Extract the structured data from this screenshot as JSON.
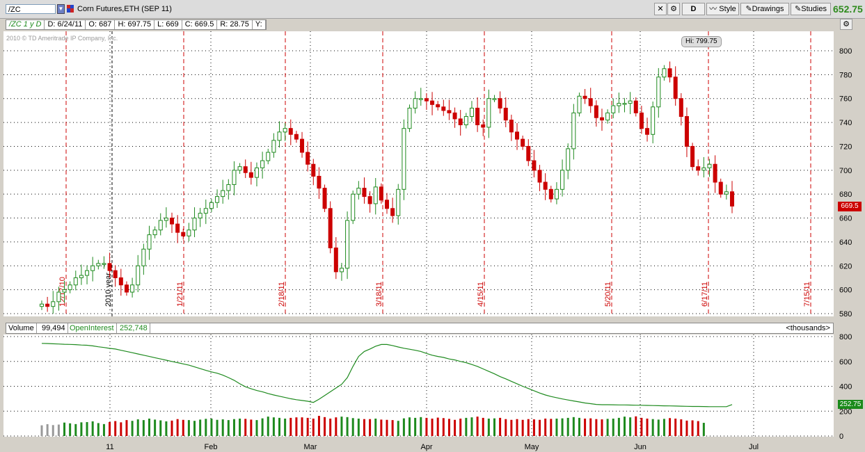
{
  "header": {
    "symbol": "/ZC",
    "description": "Corn Futures,ETH (SEP 11)",
    "aggregation": "D",
    "style_label": "Style",
    "drawings_label": "Drawings",
    "studies_label": "Studies",
    "last_price": "652.75"
  },
  "info": {
    "study": "/ZC 1 y D",
    "date": "D: 6/24/11",
    "open": "O: 687",
    "high": "H: 697.75",
    "low": "L: 669",
    "close": "C: 669.5",
    "range": "R: 28.75",
    "y": "Y:"
  },
  "copyright": "2010 © TD Ameritrade IP Company, Inc.",
  "hi_label": "Hi: 799.75",
  "price_tag": "669.5",
  "volume_header": {
    "volume_label": "Volume",
    "volume_value": "99,494",
    "oi_label": "OpenInterest",
    "oi_value": "252,748",
    "units": "<thousands>"
  },
  "volume_tag": "252.75",
  "colors": {
    "up": "#1e8a1e",
    "down": "#cc0000",
    "grid": "#000000",
    "expiry_line": "#cc0000",
    "oi_line": "#1e8a1e",
    "last_price": "#2e8b1e"
  },
  "chart_data": [
    {
      "type": "candlestick",
      "title": "Corn Futures,ETH (SEP 11)",
      "ylim": [
        580,
        810
      ],
      "y_ticks": [
        580,
        600,
        620,
        640,
        660,
        680,
        700,
        720,
        740,
        760,
        780,
        800
      ],
      "x_labels": [
        "11",
        "Feb",
        "Mar",
        "Apr",
        "May",
        "Jun",
        "Jul"
      ],
      "expiry_markers": [
        "12/17/10",
        "1/21/11",
        "2/18/11",
        "3/18/11",
        "4/15/11",
        "5/20/11",
        "6/17/11",
        "7/15/11"
      ],
      "year_marker": "2010 year",
      "closes": [
        588,
        586,
        590,
        598,
        600,
        604,
        610,
        612,
        616,
        620,
        622,
        622,
        616,
        610,
        604,
        598,
        604,
        620,
        634,
        646,
        650,
        658,
        660,
        655,
        648,
        645,
        650,
        660,
        664,
        668,
        673,
        678,
        683,
        688,
        700,
        703,
        698,
        694,
        702,
        708,
        715,
        725,
        732,
        735,
        730,
        726,
        715,
        705,
        695,
        685,
        668,
        635,
        615,
        618,
        658,
        680,
        685,
        678,
        672,
        686,
        675,
        668,
        662,
        684,
        735,
        752,
        760,
        760,
        758,
        755,
        753,
        750,
        748,
        743,
        738,
        745,
        752,
        738,
        736,
        760,
        760,
        752,
        742,
        732,
        726,
        720,
        708,
        700,
        690,
        684,
        676,
        684,
        700,
        718,
        748,
        762,
        760,
        754,
        744,
        742,
        748,
        754,
        756,
        756,
        758,
        748,
        735,
        730,
        753,
        778,
        785,
        778,
        760,
        745,
        720,
        703,
        700,
        702,
        705,
        690,
        680,
        682,
        670
      ]
    },
    {
      "type": "bar+line",
      "series": [
        {
          "name": "Volume",
          "values": [
            86,
            95,
            88,
            92,
            108,
            102,
            96,
            110,
            112,
            118,
            104,
            96,
            112,
            120,
            110,
            128,
            122,
            134,
            128,
            140,
            132,
            126,
            118,
            124,
            136,
            130,
            128,
            122,
            132,
            138,
            140,
            130,
            134,
            128,
            136,
            140,
            138,
            132,
            128,
            142,
            156,
            150,
            146,
            140,
            146,
            150,
            150,
            146,
            140,
            162,
            152,
            140,
            150,
            156,
            152,
            144,
            140,
            136,
            136,
            140,
            132,
            130,
            128,
            122,
            142,
            150,
            146,
            152,
            146,
            140,
            148,
            144,
            138,
            130,
            140,
            146,
            150,
            156,
            146,
            140,
            142,
            146,
            136,
            130,
            136,
            130,
            136,
            134,
            130,
            140,
            138,
            140,
            142,
            146,
            152,
            146,
            140,
            142,
            136,
            134,
            138,
            140,
            146,
            156,
            150,
            158,
            146,
            140,
            136,
            132,
            138,
            144,
            140,
            134,
            124,
            126,
            120,
            106
          ]
        },
        {
          "name": "OpenInterest",
          "values": [
            745,
            744,
            742,
            740,
            738,
            737,
            735,
            732,
            730,
            725,
            718,
            712,
            705,
            700,
            690,
            680,
            670,
            660,
            650,
            640,
            630,
            620,
            610,
            600,
            590,
            580,
            570,
            556,
            542,
            528,
            516,
            505,
            490,
            470,
            448,
            420,
            396,
            380,
            366,
            356,
            342,
            330,
            320,
            310,
            300,
            292,
            286,
            280,
            270,
            296,
            326,
            356,
            386,
            416,
            470,
            560,
            640,
            680,
            700,
            722,
            736,
            736,
            728,
            716,
            706,
            698,
            690,
            680,
            664,
            650,
            640,
            632,
            620,
            612,
            600,
            590,
            575,
            560,
            540,
            520,
            500,
            478,
            460,
            440,
            420,
            400,
            382,
            364,
            346,
            330,
            318,
            308,
            298,
            290,
            282,
            274,
            266,
            260,
            254,
            252,
            252,
            251,
            250,
            250,
            249,
            248,
            247,
            246,
            245,
            244,
            243,
            242,
            241,
            240,
            239,
            238,
            238,
            237,
            236,
            236,
            236,
            236,
            253
          ]
        }
      ],
      "ylim": [
        0,
        800
      ],
      "y_ticks": [
        0,
        200,
        400,
        600,
        800
      ]
    }
  ]
}
